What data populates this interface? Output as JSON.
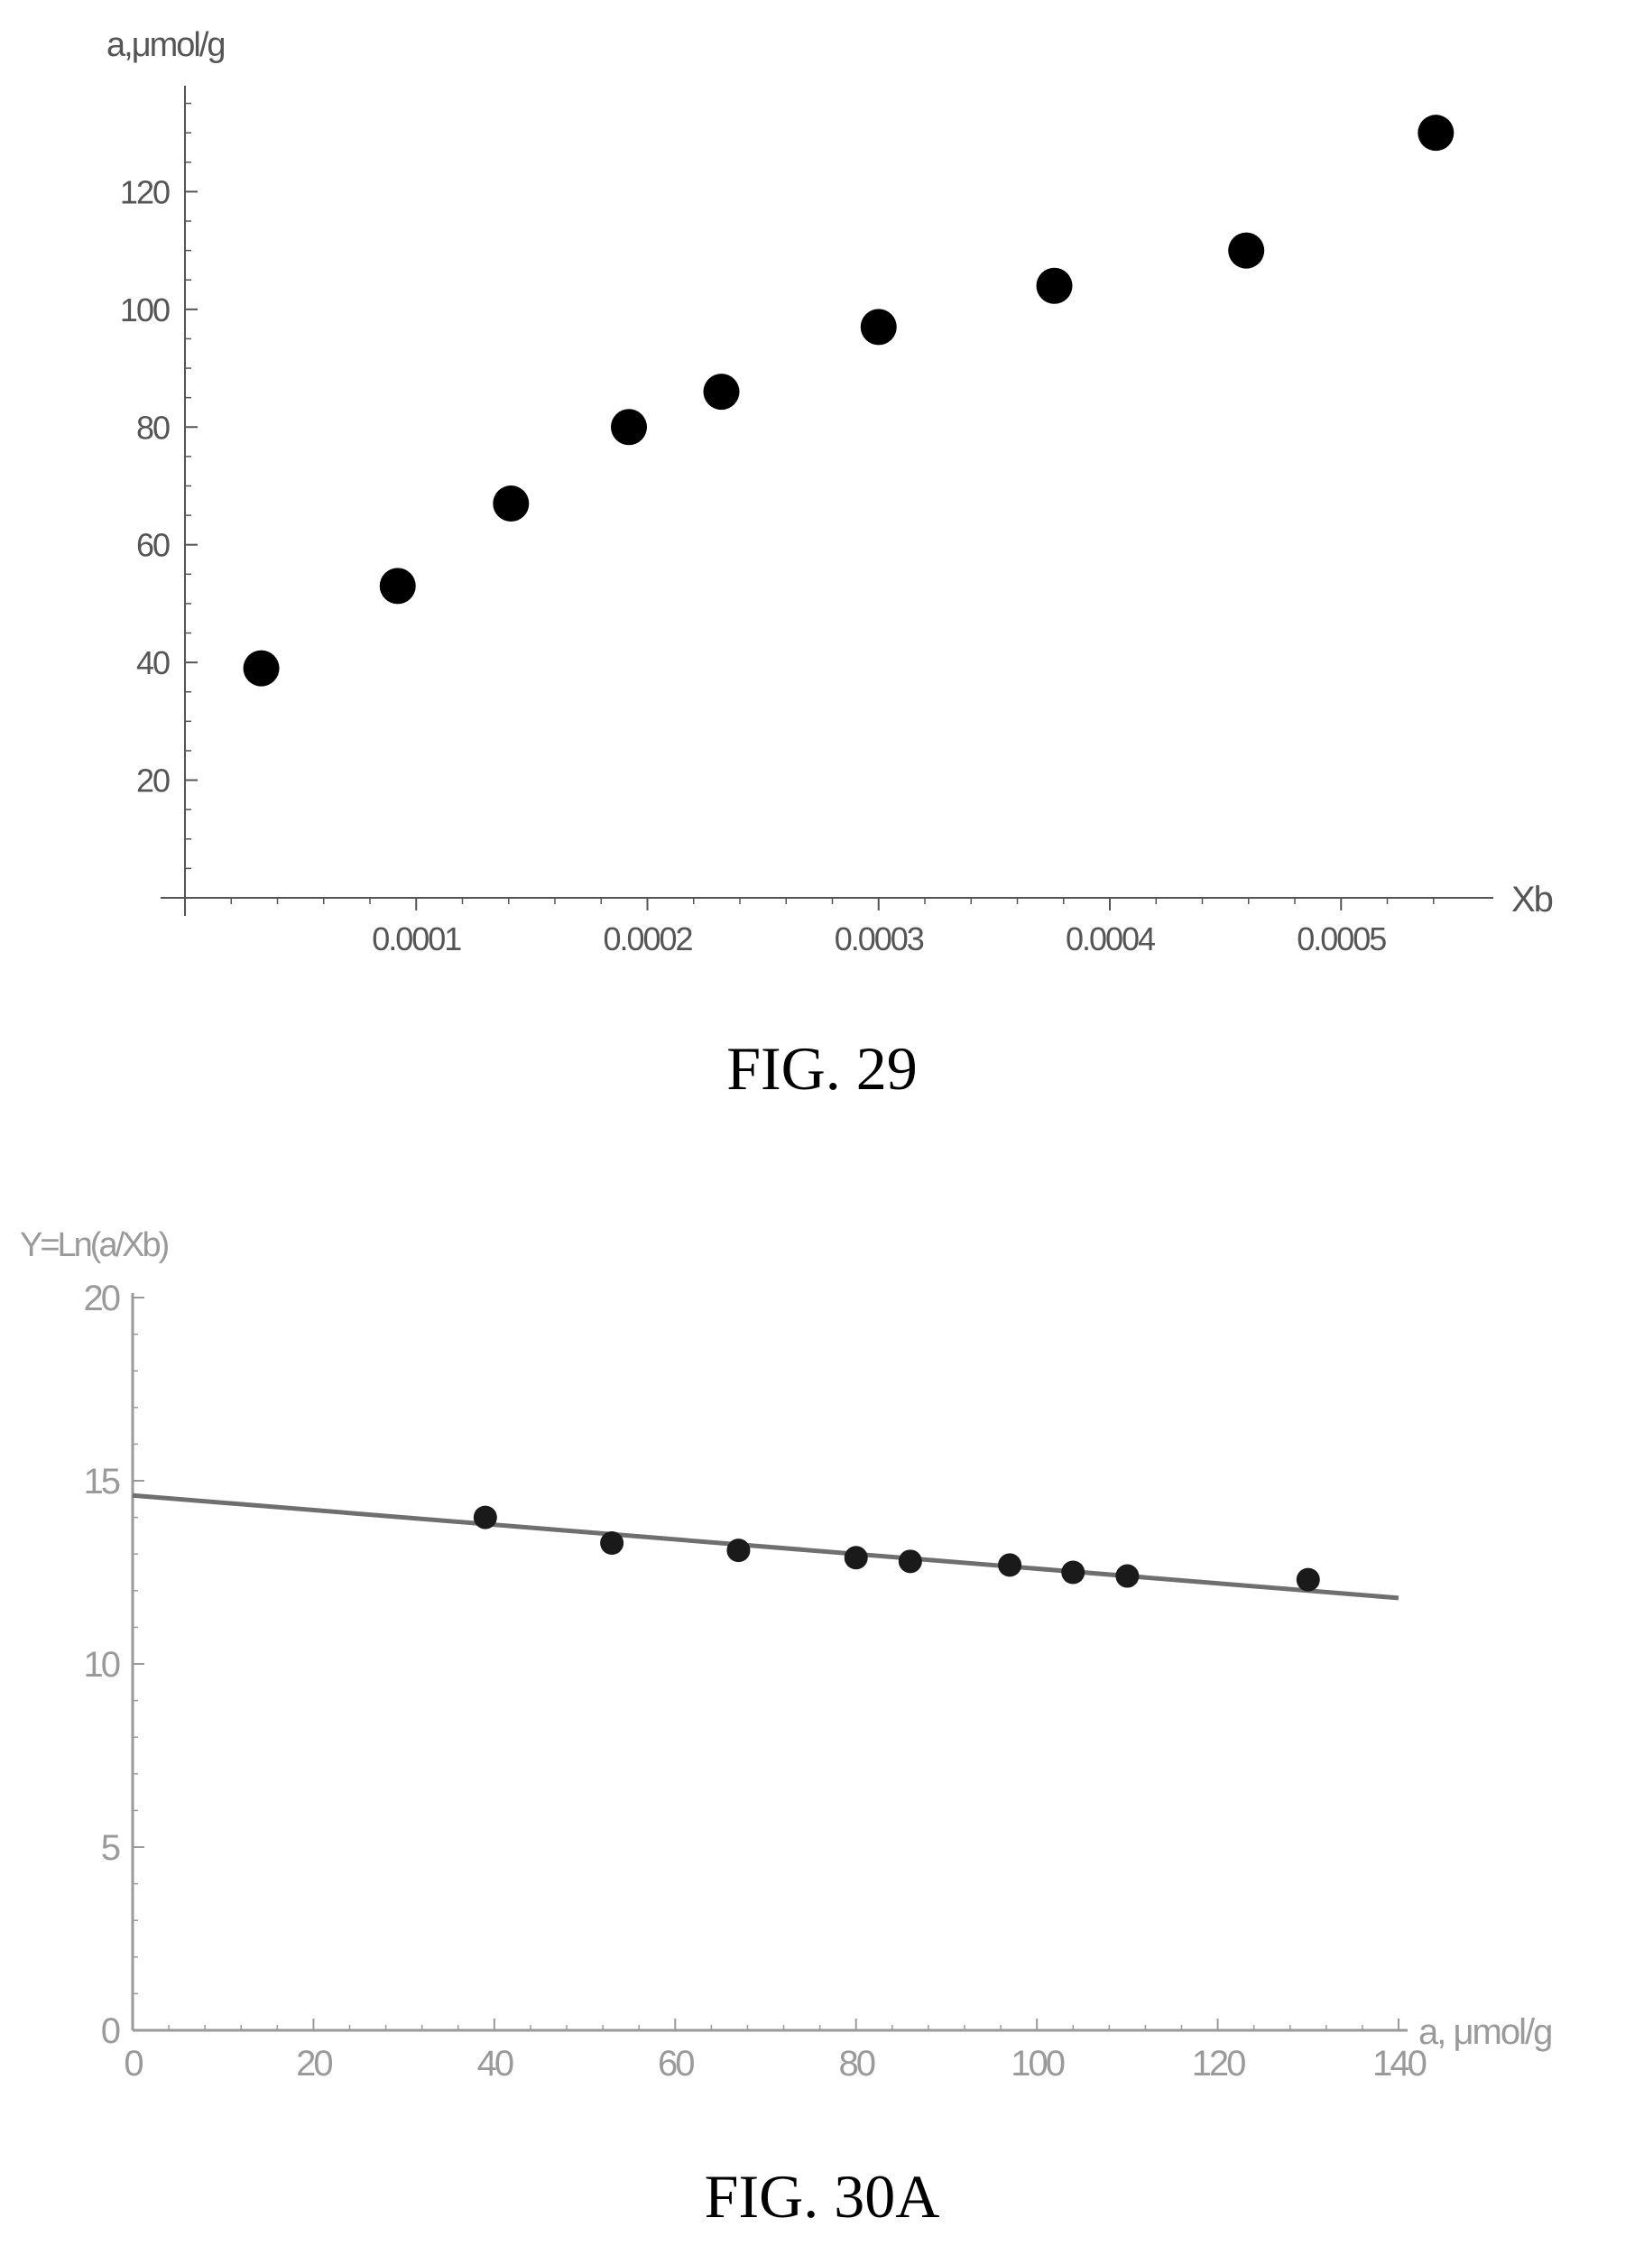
{
  "figures": [
    {
      "caption": "FIG. 29",
      "chart_data": {
        "type": "scatter",
        "xlabel": "Xb",
        "ylabel": "a,μmol/g",
        "xlim": [
          0,
          0.00056
        ],
        "ylim": [
          0,
          138
        ],
        "xticks": [
          0.0001,
          0.0002,
          0.0003,
          0.0004,
          0.0005
        ],
        "xtick_labels": [
          "0.0001",
          "0.0002",
          "0.0003",
          "0.0004",
          "0.0005"
        ],
        "yticks": [
          20,
          40,
          60,
          80,
          100,
          120
        ],
        "ytick_labels": [
          "20",
          "40",
          "60",
          "80",
          "100",
          "120"
        ],
        "grid": false,
        "legend": false,
        "series": [
          {
            "x": [
              3.3e-05,
              9.2e-05,
              0.000141,
              0.000192,
              0.000232,
              0.0003,
              0.000376,
              0.000459,
              0.000541
            ],
            "y": [
              39,
              53,
              67,
              80,
              86,
              97,
              104,
              110,
              130
            ]
          }
        ]
      }
    },
    {
      "caption": "FIG. 30A",
      "chart_data": {
        "type": "scatter",
        "xlabel": "a, μmol/g",
        "ylabel": "Y=Ln(a/Xb)",
        "xlim": [
          0,
          140
        ],
        "ylim": [
          0,
          20
        ],
        "xticks": [
          0,
          20,
          40,
          60,
          80,
          100,
          120,
          140
        ],
        "xtick_labels": [
          "0",
          "20",
          "40",
          "60",
          "80",
          "100",
          "120",
          "140"
        ],
        "yticks": [
          0,
          5,
          10,
          15,
          20
        ],
        "ytick_labels": [
          "0",
          "5",
          "10",
          "15",
          "20"
        ],
        "grid": false,
        "legend": false,
        "series": [
          {
            "x": [
              39,
              53,
              67,
              80,
              86,
              97,
              104,
              110,
              130
            ],
            "y": [
              14.0,
              13.3,
              13.1,
              12.9,
              12.8,
              12.7,
              12.5,
              12.4,
              12.3
            ]
          }
        ],
        "fit_line": {
          "x": [
            0,
            140
          ],
          "y": [
            14.6,
            11.8
          ]
        }
      }
    }
  ]
}
